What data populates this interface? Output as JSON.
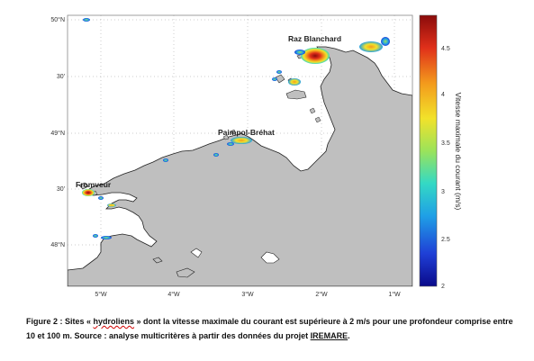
{
  "map": {
    "lat_labels": [
      "50°N",
      "30'",
      "49°N",
      "30'",
      "48°N"
    ],
    "lon_labels": [
      "5°W",
      "4°W",
      "3°W",
      "2°W",
      "1°W"
    ],
    "sites": [
      "Raz Blanchard",
      "Paimpol-Bréhat",
      "Fromveur"
    ]
  },
  "colorbar": {
    "label": "Vitesse maximale du courant (m/s)",
    "ticks": [
      "4.5",
      "4",
      "3.5",
      "3",
      "2.5",
      "2"
    ],
    "range": [
      2,
      4.8
    ],
    "colors": [
      "#0a0a8a",
      "#1f3fd6",
      "#1fa0e6",
      "#34d9c4",
      "#9be35a",
      "#f2e22a",
      "#f39a1c",
      "#e0301a",
      "#8a0b0b"
    ]
  },
  "caption": {
    "part1": "Figure 2 : Sites « ",
    "underlined": "hydroliens",
    "part2": " » dont la vitesse maximale du courant est supérieure à 2 m/s pour une profondeur comprise entre 10 et 100 m. Source : analyse multicritères à partir des données du projet ",
    "project": "IREMARE",
    "end": "."
  }
}
